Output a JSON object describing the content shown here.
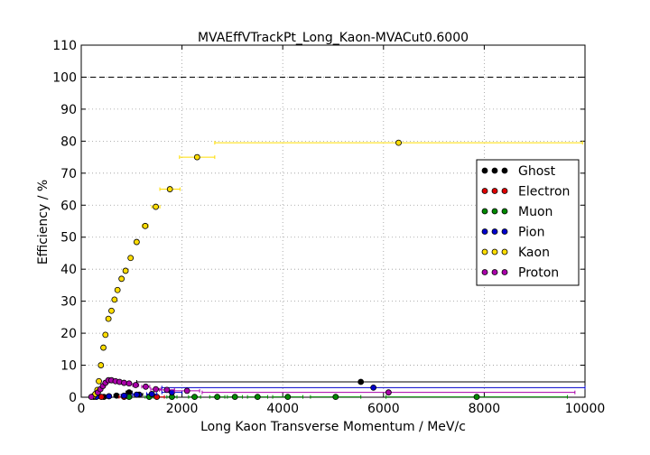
{
  "chart_data": {
    "type": "scatter",
    "title": "MVAEffVTrackPt_Long_Kaon-MVACut0.6000",
    "xlabel": "Long Kaon Transverse Momentum / MeV/c",
    "ylabel": "Efficiency / %",
    "xlim": [
      0,
      10000
    ],
    "ylim": [
      0,
      110
    ],
    "xticks": [
      0,
      2000,
      4000,
      6000,
      8000,
      10000
    ],
    "yticks": [
      0,
      10,
      20,
      30,
      40,
      50,
      60,
      70,
      80,
      90,
      100,
      110
    ],
    "grid": true,
    "reference_line": 100,
    "legend_position": "right",
    "series": [
      {
        "name": "Ghost",
        "color": "#000000",
        "points": [
          {
            "x": 450,
            "y": 0.1,
            "xerr": 50
          },
          {
            "x": 700,
            "y": 0.5,
            "xerr": 50
          },
          {
            "x": 950,
            "y": 1.5,
            "xerr": 60
          },
          {
            "x": 1150,
            "y": 0.8,
            "xerr": 70
          },
          {
            "x": 5550,
            "y": 4.8,
            "xerr": 4450
          }
        ]
      },
      {
        "name": "Electron",
        "color": "#dd0000",
        "points": [
          {
            "x": 250,
            "y": 0.1,
            "xerr": 50
          },
          {
            "x": 400,
            "y": 0.1,
            "xerr": 50
          },
          {
            "x": 850,
            "y": 0.1,
            "xerr": 100
          },
          {
            "x": 1500,
            "y": 0.1,
            "xerr": 150
          }
        ]
      },
      {
        "name": "Muon",
        "color": "#008800",
        "points": [
          {
            "x": 950,
            "y": 0.1,
            "xerr": 50
          },
          {
            "x": 1350,
            "y": 0.1,
            "xerr": 80
          },
          {
            "x": 1800,
            "y": 0.1,
            "xerr": 100
          },
          {
            "x": 2250,
            "y": 0.1,
            "xerr": 120
          },
          {
            "x": 2700,
            "y": 0.1,
            "xerr": 150
          },
          {
            "x": 3050,
            "y": 0.1,
            "xerr": 150
          },
          {
            "x": 3500,
            "y": 0.1,
            "xerr": 200
          },
          {
            "x": 4100,
            "y": 0.1,
            "xerr": 300
          },
          {
            "x": 5050,
            "y": 0.1,
            "xerr": 500
          },
          {
            "x": 7850,
            "y": 0.1,
            "xerr": 1800
          }
        ]
      },
      {
        "name": "Pion",
        "color": "#0000cc",
        "points": [
          {
            "x": 300,
            "y": 0.1,
            "xerr": 50
          },
          {
            "x": 550,
            "y": 0.3,
            "xerr": 50
          },
          {
            "x": 850,
            "y": 0.5,
            "xerr": 60
          },
          {
            "x": 1100,
            "y": 0.8,
            "xerr": 80
          },
          {
            "x": 1400,
            "y": 1.0,
            "xerr": 100
          },
          {
            "x": 1800,
            "y": 1.5,
            "xerr": 200
          },
          {
            "x": 5800,
            "y": 3.0,
            "xerr": 4200
          }
        ]
      },
      {
        "name": "Kaon",
        "color": "#ffdd00",
        "points": [
          {
            "x": 240,
            "y": 0.3,
            "xerr": 20
          },
          {
            "x": 280,
            "y": 1.0,
            "xerr": 20
          },
          {
            "x": 320,
            "y": 2.3,
            "xerr": 20
          },
          {
            "x": 350,
            "y": 5.0,
            "xerr": 20
          },
          {
            "x": 390,
            "y": 10.0,
            "xerr": 20
          },
          {
            "x": 440,
            "y": 15.5,
            "xerr": 20
          },
          {
            "x": 480,
            "y": 19.5,
            "xerr": 20
          },
          {
            "x": 540,
            "y": 24.5,
            "xerr": 25
          },
          {
            "x": 600,
            "y": 27.0,
            "xerr": 25
          },
          {
            "x": 660,
            "y": 30.5,
            "xerr": 25
          },
          {
            "x": 720,
            "y": 33.5,
            "xerr": 25
          },
          {
            "x": 800,
            "y": 37.0,
            "xerr": 30
          },
          {
            "x": 880,
            "y": 39.5,
            "xerr": 30
          },
          {
            "x": 980,
            "y": 43.5,
            "xerr": 35
          },
          {
            "x": 1100,
            "y": 48.5,
            "xerr": 40
          },
          {
            "x": 1270,
            "y": 53.5,
            "xerr": 60
          },
          {
            "x": 1480,
            "y": 59.5,
            "xerr": 80
          },
          {
            "x": 1760,
            "y": 65.0,
            "xerr": 200
          },
          {
            "x": 2300,
            "y": 75.0,
            "xerr": 350
          },
          {
            "x": 6300,
            "y": 79.5,
            "xerr": 3650
          }
        ]
      },
      {
        "name": "Proton",
        "color": "#aa00aa",
        "points": [
          {
            "x": 200,
            "y": 0.1,
            "xerr": 30
          },
          {
            "x": 330,
            "y": 1.5,
            "xerr": 25
          },
          {
            "x": 380,
            "y": 2.5,
            "xerr": 25
          },
          {
            "x": 430,
            "y": 3.5,
            "xerr": 25
          },
          {
            "x": 480,
            "y": 4.5,
            "xerr": 25
          },
          {
            "x": 540,
            "y": 5.3,
            "xerr": 25
          },
          {
            "x": 600,
            "y": 5.3,
            "xerr": 25
          },
          {
            "x": 680,
            "y": 5.0,
            "xerr": 30
          },
          {
            "x": 760,
            "y": 4.8,
            "xerr": 30
          },
          {
            "x": 850,
            "y": 4.5,
            "xerr": 35
          },
          {
            "x": 950,
            "y": 4.3,
            "xerr": 40
          },
          {
            "x": 1080,
            "y": 3.8,
            "xerr": 60
          },
          {
            "x": 1280,
            "y": 3.3,
            "xerr": 80
          },
          {
            "x": 1480,
            "y": 2.5,
            "xerr": 100
          },
          {
            "x": 1700,
            "y": 2.3,
            "xerr": 150
          },
          {
            "x": 2100,
            "y": 2.0,
            "xerr": 250
          },
          {
            "x": 6100,
            "y": 1.5,
            "xerr": 3700
          }
        ]
      }
    ]
  }
}
